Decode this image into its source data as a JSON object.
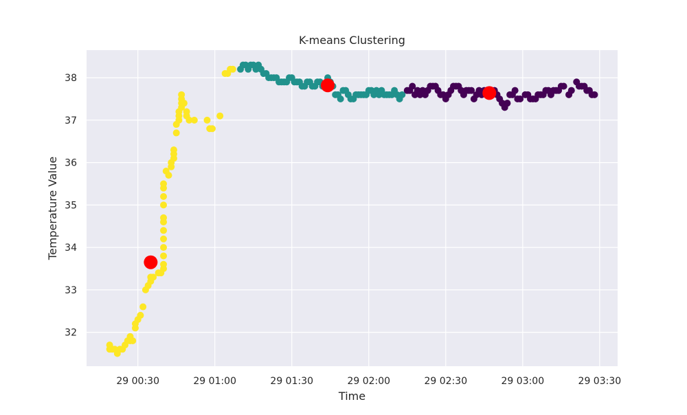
{
  "chart_data": {
    "type": "scatter",
    "title": "K-means Clustering",
    "xlabel": "Time",
    "ylabel": "Temperature Value",
    "x_axis_type": "time",
    "xlim": [
      "00:10:00",
      "03:37:00"
    ],
    "ylim": [
      31.2,
      38.65
    ],
    "grid": true,
    "background_color": "#eaeaf2",
    "x_ticks": [
      {
        "value": "00:30",
        "label": "29 00:30"
      },
      {
        "value": "01:00",
        "label": "29 01:00"
      },
      {
        "value": "01:30",
        "label": "29 01:30"
      },
      {
        "value": "02:00",
        "label": "29 02:00"
      },
      {
        "value": "02:30",
        "label": "29 02:30"
      },
      {
        "value": "03:00",
        "label": "29 03:00"
      },
      {
        "value": "03:30",
        "label": "29 03:30"
      }
    ],
    "y_ticks": [
      32,
      33,
      34,
      35,
      36,
      37,
      38
    ],
    "cluster_colors": [
      "#fde725",
      "#21918c",
      "#440154"
    ],
    "centroid_color": "#ff0000",
    "series": [
      {
        "cluster": 0,
        "color": "#fde725",
        "points": [
          [
            "00:19",
            31.7
          ],
          [
            "00:19",
            31.6
          ],
          [
            "00:20",
            31.6
          ],
          [
            "00:21",
            31.6
          ],
          [
            "00:22",
            31.5
          ],
          [
            "00:23",
            31.6
          ],
          [
            "00:24",
            31.6
          ],
          [
            "00:25",
            31.7
          ],
          [
            "00:26",
            31.8
          ],
          [
            "00:27",
            31.8
          ],
          [
            "00:27",
            31.9
          ],
          [
            "00:28",
            31.8
          ],
          [
            "00:29",
            32.1
          ],
          [
            "00:29",
            32.2
          ],
          [
            "00:30",
            32.3
          ],
          [
            "00:31",
            32.4
          ],
          [
            "00:32",
            32.6
          ],
          [
            "00:33",
            33.0
          ],
          [
            "00:34",
            33.1
          ],
          [
            "00:35",
            33.2
          ],
          [
            "00:35",
            33.3
          ],
          [
            "00:36",
            33.3
          ],
          [
            "00:38",
            33.4
          ],
          [
            "00:39",
            33.4
          ],
          [
            "00:40",
            33.5
          ],
          [
            "00:40",
            33.6
          ],
          [
            "00:40",
            33.8
          ],
          [
            "00:40",
            34.0
          ],
          [
            "00:40",
            34.2
          ],
          [
            "00:40",
            34.4
          ],
          [
            "00:40",
            34.6
          ],
          [
            "00:40",
            34.7
          ],
          [
            "00:40",
            35.0
          ],
          [
            "00:40",
            35.2
          ],
          [
            "00:40",
            35.4
          ],
          [
            "00:40",
            35.5
          ],
          [
            "00:41",
            35.8
          ],
          [
            "00:42",
            35.7
          ],
          [
            "00:43",
            35.9
          ],
          [
            "00:43",
            36.0
          ],
          [
            "00:44",
            36.1
          ],
          [
            "00:44",
            36.2
          ],
          [
            "00:44",
            36.3
          ],
          [
            "00:45",
            36.7
          ],
          [
            "00:45",
            36.9
          ],
          [
            "00:46",
            37.0
          ],
          [
            "00:46",
            37.1
          ],
          [
            "00:46",
            37.2
          ],
          [
            "00:47",
            37.3
          ],
          [
            "00:47",
            37.4
          ],
          [
            "00:47",
            37.5
          ],
          [
            "00:47",
            37.6
          ],
          [
            "00:48",
            37.4
          ],
          [
            "00:49",
            37.2
          ],
          [
            "00:49",
            37.1
          ],
          [
            "00:50",
            37.0
          ],
          [
            "00:52",
            37.0
          ],
          [
            "00:57",
            37.0
          ],
          [
            "00:58",
            36.8
          ],
          [
            "00:59",
            36.8
          ],
          [
            "01:02",
            37.1
          ],
          [
            "01:04",
            38.1
          ],
          [
            "01:05",
            38.1
          ],
          [
            "01:06",
            38.2
          ],
          [
            "01:07",
            38.2
          ]
        ]
      },
      {
        "cluster": 1,
        "color": "#21918c",
        "points": [
          [
            "01:10",
            38.2
          ],
          [
            "01:11",
            38.3
          ],
          [
            "01:12",
            38.3
          ],
          [
            "01:13",
            38.2
          ],
          [
            "01:14",
            38.3
          ],
          [
            "01:15",
            38.3
          ],
          [
            "01:16",
            38.2
          ],
          [
            "01:17",
            38.3
          ],
          [
            "01:18",
            38.2
          ],
          [
            "01:19",
            38.1
          ],
          [
            "01:20",
            38.1
          ],
          [
            "01:21",
            38.0
          ],
          [
            "01:22",
            38.0
          ],
          [
            "01:23",
            38.0
          ],
          [
            "01:24",
            38.0
          ],
          [
            "01:25",
            37.9
          ],
          [
            "01:26",
            37.9
          ],
          [
            "01:27",
            37.9
          ],
          [
            "01:28",
            37.9
          ],
          [
            "01:29",
            38.0
          ],
          [
            "01:30",
            38.0
          ],
          [
            "01:31",
            37.9
          ],
          [
            "01:32",
            37.9
          ],
          [
            "01:33",
            37.9
          ],
          [
            "01:34",
            37.8
          ],
          [
            "01:35",
            37.8
          ],
          [
            "01:36",
            37.9
          ],
          [
            "01:37",
            37.9
          ],
          [
            "01:38",
            37.8
          ],
          [
            "01:39",
            37.8
          ],
          [
            "01:40",
            37.9
          ],
          [
            "01:41",
            37.9
          ],
          [
            "01:42",
            37.8
          ],
          [
            "01:43",
            37.8
          ],
          [
            "01:44",
            38.0
          ],
          [
            "01:45",
            37.9
          ],
          [
            "01:46",
            37.8
          ],
          [
            "01:47",
            37.6
          ],
          [
            "01:48",
            37.6
          ],
          [
            "01:49",
            37.5
          ],
          [
            "01:50",
            37.7
          ],
          [
            "01:51",
            37.7
          ],
          [
            "01:52",
            37.6
          ],
          [
            "01:53",
            37.5
          ],
          [
            "01:54",
            37.5
          ],
          [
            "01:55",
            37.6
          ],
          [
            "01:56",
            37.6
          ],
          [
            "01:57",
            37.6
          ],
          [
            "01:58",
            37.6
          ],
          [
            "01:59",
            37.6
          ],
          [
            "02:00",
            37.7
          ],
          [
            "02:01",
            37.7
          ],
          [
            "02:02",
            37.6
          ],
          [
            "02:03",
            37.7
          ],
          [
            "02:04",
            37.6
          ],
          [
            "02:05",
            37.7
          ],
          [
            "02:06",
            37.6
          ],
          [
            "02:07",
            37.6
          ],
          [
            "02:08",
            37.6
          ],
          [
            "02:09",
            37.6
          ],
          [
            "02:10",
            37.7
          ],
          [
            "02:11",
            37.6
          ],
          [
            "02:12",
            37.5
          ],
          [
            "02:13",
            37.6
          ]
        ]
      },
      {
        "cluster": 2,
        "color": "#440154",
        "points": [
          [
            "02:15",
            37.7
          ],
          [
            "02:16",
            37.7
          ],
          [
            "02:17",
            37.8
          ],
          [
            "02:18",
            37.6
          ],
          [
            "02:19",
            37.7
          ],
          [
            "02:20",
            37.6
          ],
          [
            "02:21",
            37.7
          ],
          [
            "02:22",
            37.6
          ],
          [
            "02:23",
            37.7
          ],
          [
            "02:24",
            37.8
          ],
          [
            "02:25",
            37.8
          ],
          [
            "02:26",
            37.8
          ],
          [
            "02:27",
            37.7
          ],
          [
            "02:28",
            37.6
          ],
          [
            "02:29",
            37.6
          ],
          [
            "02:30",
            37.5
          ],
          [
            "02:31",
            37.6
          ],
          [
            "02:32",
            37.7
          ],
          [
            "02:33",
            37.8
          ],
          [
            "02:34",
            37.8
          ],
          [
            "02:35",
            37.8
          ],
          [
            "02:36",
            37.7
          ],
          [
            "02:37",
            37.6
          ],
          [
            "02:38",
            37.7
          ],
          [
            "02:39",
            37.7
          ],
          [
            "02:40",
            37.7
          ],
          [
            "02:41",
            37.5
          ],
          [
            "02:42",
            37.6
          ],
          [
            "02:43",
            37.7
          ],
          [
            "02:44",
            37.6
          ],
          [
            "02:45",
            37.7
          ],
          [
            "02:46",
            37.6
          ],
          [
            "02:47",
            37.7
          ],
          [
            "02:48",
            37.6
          ],
          [
            "02:49",
            37.7
          ],
          [
            "02:50",
            37.6
          ],
          [
            "02:51",
            37.5
          ],
          [
            "02:52",
            37.4
          ],
          [
            "02:53",
            37.3
          ],
          [
            "02:54",
            37.4
          ],
          [
            "02:55",
            37.6
          ],
          [
            "02:56",
            37.6
          ],
          [
            "02:57",
            37.7
          ],
          [
            "02:58",
            37.5
          ],
          [
            "02:59",
            37.5
          ],
          [
            "03:01",
            37.6
          ],
          [
            "03:02",
            37.6
          ],
          [
            "03:03",
            37.5
          ],
          [
            "03:04",
            37.5
          ],
          [
            "03:05",
            37.5
          ],
          [
            "03:06",
            37.6
          ],
          [
            "03:07",
            37.6
          ],
          [
            "03:08",
            37.6
          ],
          [
            "03:09",
            37.7
          ],
          [
            "03:10",
            37.7
          ],
          [
            "03:11",
            37.6
          ],
          [
            "03:12",
            37.7
          ],
          [
            "03:13",
            37.7
          ],
          [
            "03:14",
            37.7
          ],
          [
            "03:15",
            37.8
          ],
          [
            "03:16",
            37.8
          ],
          [
            "03:18",
            37.6
          ],
          [
            "03:19",
            37.7
          ],
          [
            "03:21",
            37.9
          ],
          [
            "03:22",
            37.8
          ],
          [
            "03:23",
            37.8
          ],
          [
            "03:24",
            37.8
          ],
          [
            "03:25",
            37.7
          ],
          [
            "03:26",
            37.7
          ],
          [
            "03:27",
            37.6
          ],
          [
            "03:28",
            37.6
          ]
        ]
      }
    ],
    "centroids": [
      {
        "cluster": 0,
        "x": "00:35",
        "y": 33.65
      },
      {
        "cluster": 1,
        "x": "01:44",
        "y": 37.82
      },
      {
        "cluster": 2,
        "x": "02:47",
        "y": 37.64
      }
    ]
  }
}
